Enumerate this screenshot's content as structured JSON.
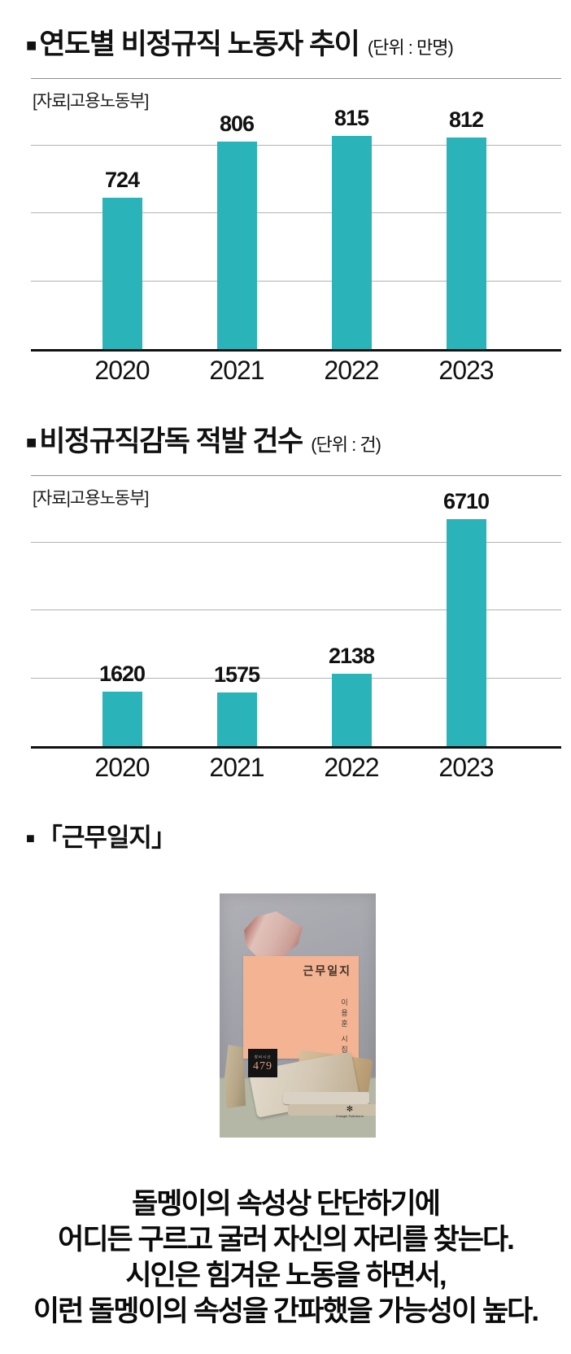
{
  "page": {
    "background": "#ffffff",
    "text_color": "#111111"
  },
  "chart_data": [
    {
      "type": "bar",
      "marker": "■",
      "title": "연도별 비정규직 노동자 추이",
      "unit": "(단위 : 만명)",
      "source": "[자료|고용노동부]",
      "categories": [
        "2020",
        "2021",
        "2022",
        "2023"
      ],
      "values": [
        724,
        806,
        815,
        812
      ],
      "xlabel": "",
      "ylabel": "",
      "ylim": [
        500,
        900
      ],
      "grid_step": 100,
      "grid": "on",
      "legend": "none",
      "bar_color": "#2ab3b8"
    },
    {
      "type": "bar",
      "marker": "■",
      "title": "비정규직감독 적발 건수",
      "unit": "(단위 : 건)",
      "source": "[자료|고용노동부]",
      "categories": [
        "2020",
        "2021",
        "2022",
        "2023"
      ],
      "values": [
        1620,
        1575,
        2138,
        6710
      ],
      "xlabel": "",
      "ylabel": "",
      "ylim": [
        0,
        8000
      ],
      "grid_step": 2000,
      "grid": "on",
      "legend": "none",
      "bar_color": "#2ab3b8"
    }
  ],
  "book": {
    "marker": "■",
    "heading": "「근무일지」",
    "cover": {
      "title": "근무일지",
      "author": "이용훈 시집",
      "series_label": "창비시선",
      "series_number": "479",
      "publisher_glyph": "✻",
      "publisher": "Changbi Publishers",
      "card_color": "#f4b494",
      "surface_color": "#b4b7a5",
      "badge_color": "#141414"
    }
  },
  "caption": {
    "lines": [
      "돌멩이의 속성상 단단하기에",
      "어디든 구르고 굴러 자신의 자리를 찾는다.",
      "시인은 힘겨운 노동을 하면서,",
      "이런 돌멩이의 속성을 간파했을 가능성이 높다."
    ]
  }
}
